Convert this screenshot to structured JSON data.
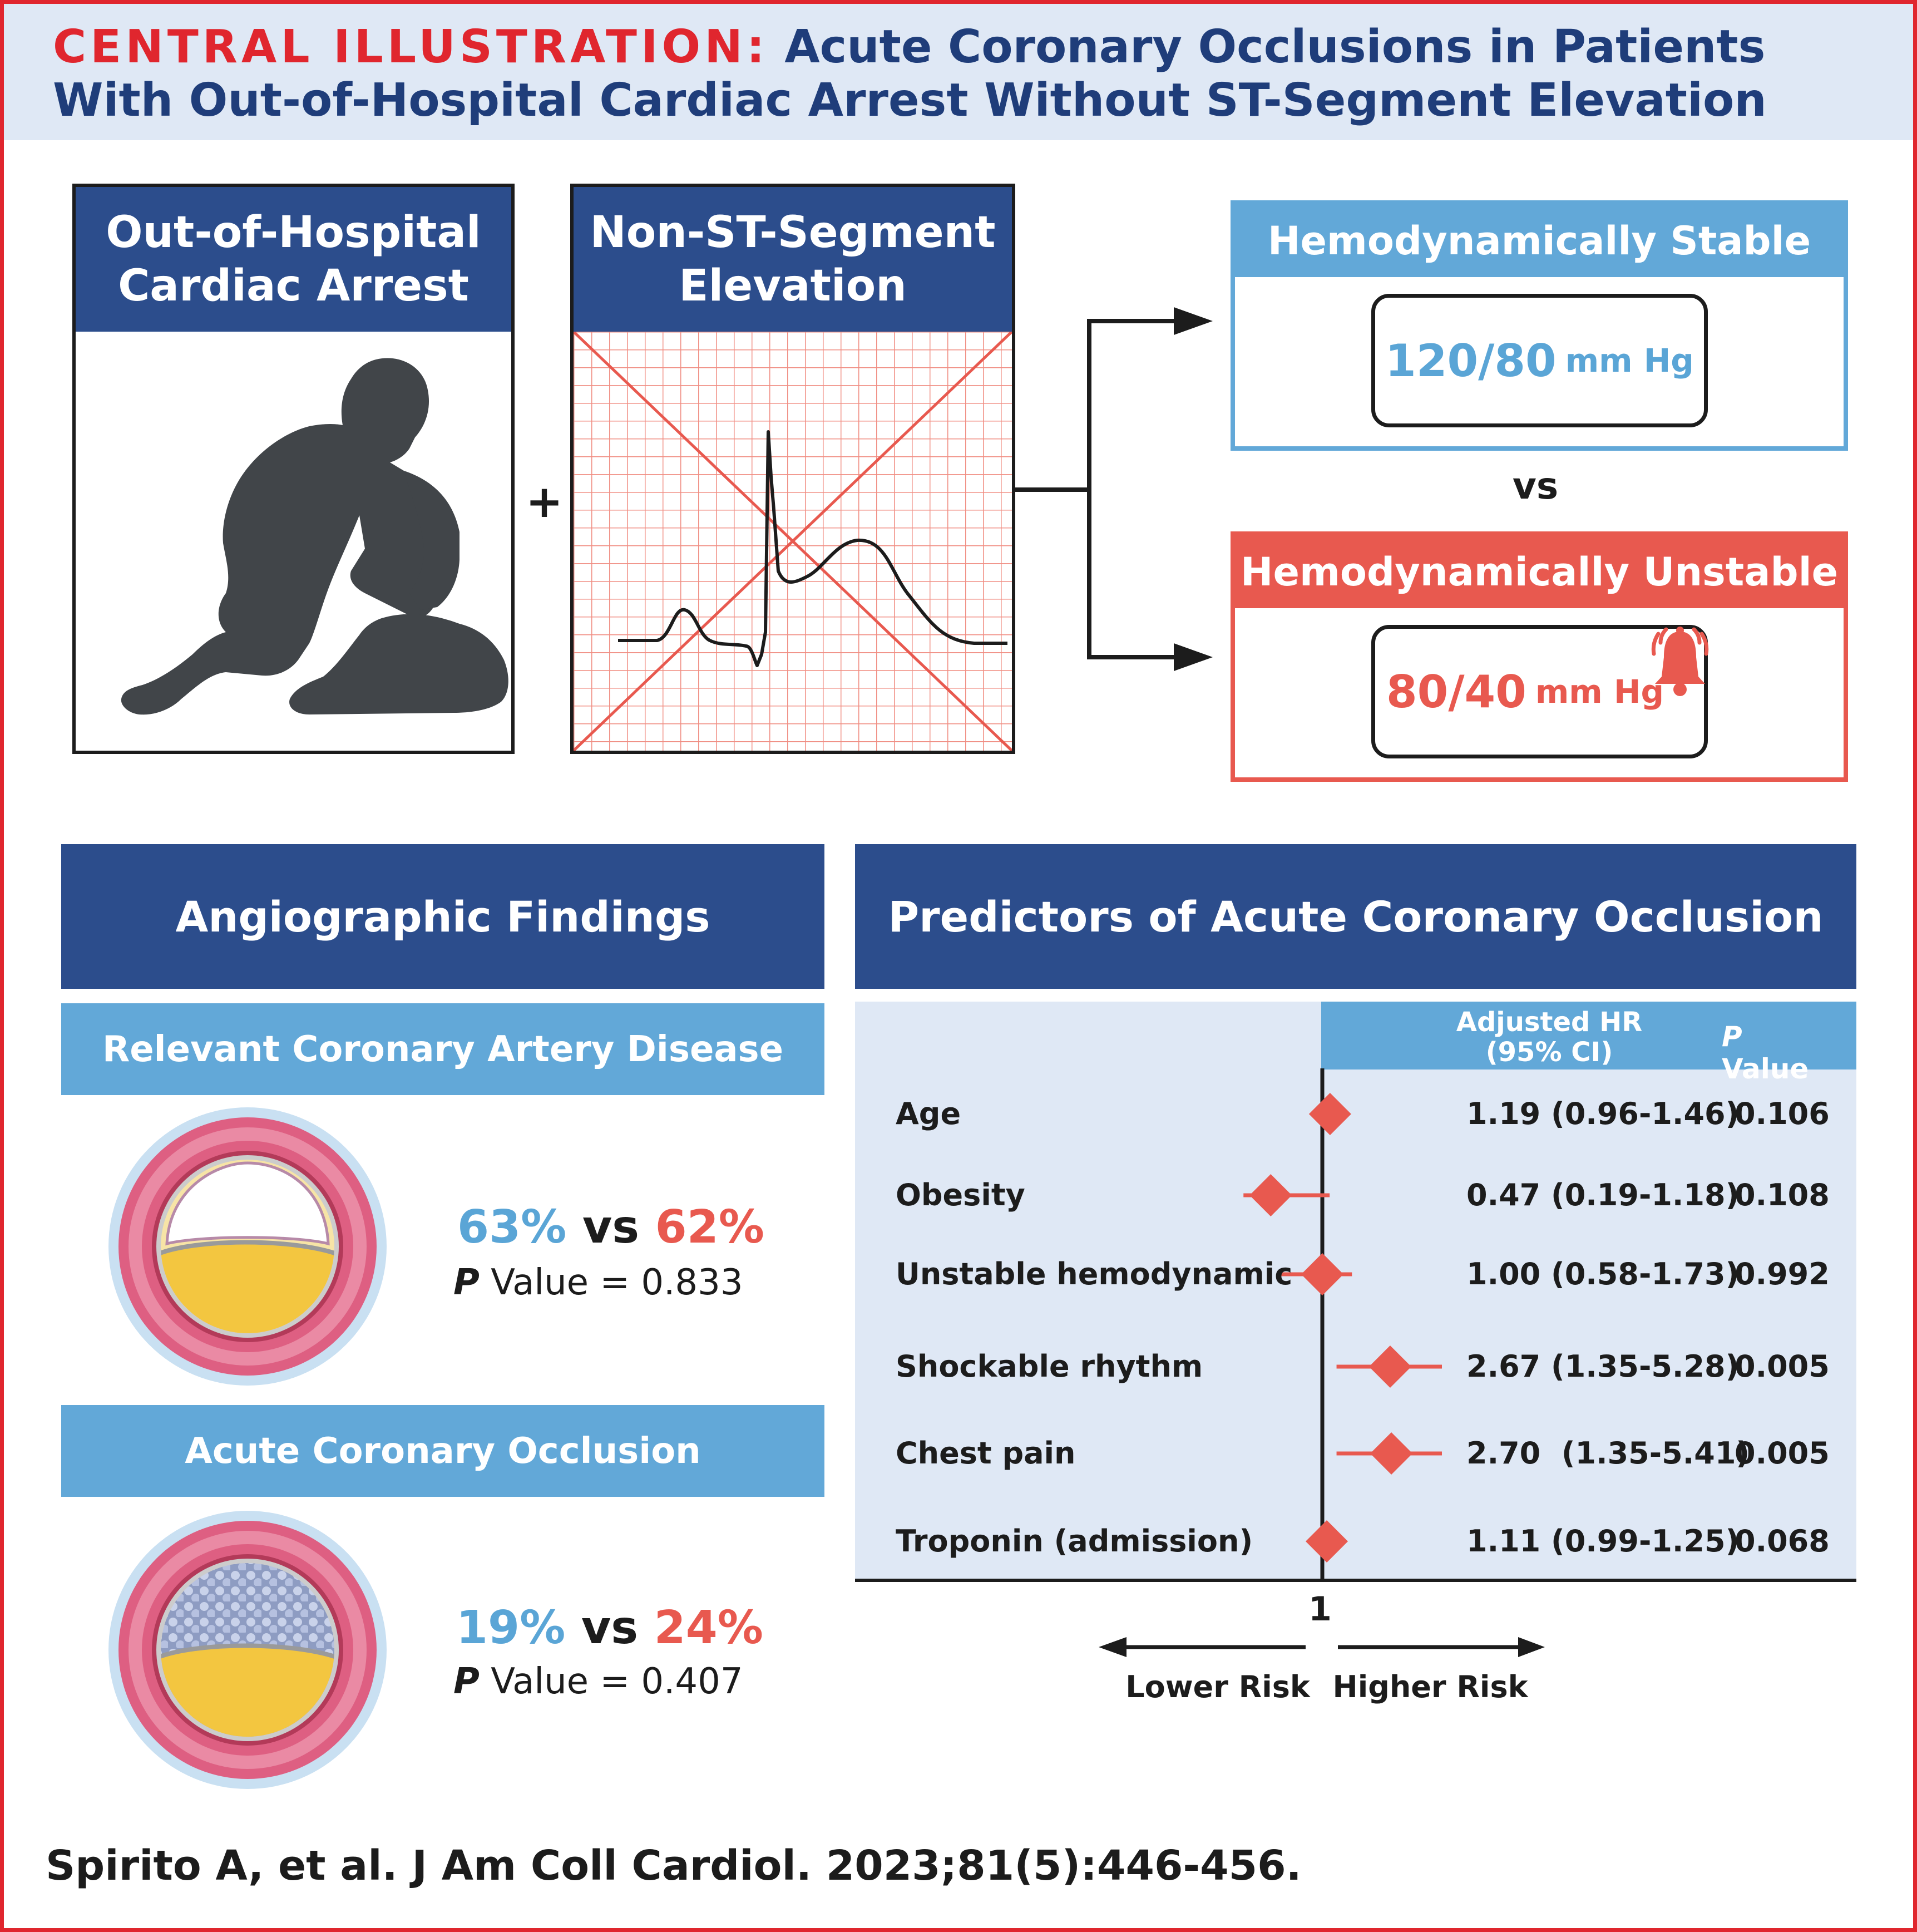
{
  "title": {
    "lead": "CENTRAL ILLUSTRATION:",
    "rest": "Acute Coronary Occlusions in Patients With Out-of-Hospital Cardiac Arrest Without ST-Segment Elevation"
  },
  "panels": {
    "ohca": {
      "line1": "Out-of-Hospital",
      "line2": "Cardiac Arrest"
    },
    "plus": "+",
    "nonst": {
      "line1": "Non-ST-Segment",
      "line2": "Elevation"
    }
  },
  "hemodynamics": {
    "stable": {
      "title": "Hemodynamically Stable",
      "value": "120/80",
      "unit": "mm Hg"
    },
    "vs": "vs",
    "unstable": {
      "title": "Hemodynamically Unstable",
      "value": "80/40",
      "unit": "mm Hg"
    }
  },
  "angiographic": {
    "title": "Angiographic Findings",
    "cad": {
      "title": "Relevant Coronary Artery Disease",
      "stable_pct": "63%",
      "vs": "vs",
      "unstable_pct": "62%",
      "p_label": "P",
      "p_text": "Value = 0.833"
    },
    "aco": {
      "title": "Acute Coronary Occlusion",
      "stable_pct": "19%",
      "vs": "vs",
      "unstable_pct": "24%",
      "p_label": "P",
      "p_text": "Value = 0.407"
    }
  },
  "predictors": {
    "title": "Predictors of Acute Coronary Occlusion",
    "hr_header_line1": "Adjusted HR",
    "hr_header_line2": "(95% CI)",
    "p_header_italic": "P",
    "p_header_rest": "Value",
    "ref_label": "1",
    "lower_risk": "Lower Risk",
    "higher_risk": "Higher Risk"
  },
  "chart_data": {
    "type": "forest",
    "reference": 1,
    "rows": [
      {
        "label": "Age",
        "hr": 1.19,
        "ci": [
          0.96,
          1.46
        ],
        "hr_text": "1.19 (0.96-1.46)",
        "p": "0.106"
      },
      {
        "label": "Obesity",
        "hr": 0.47,
        "ci": [
          0.19,
          1.18
        ],
        "hr_text": "0.47 (0.19-1.18)",
        "p": "0.108"
      },
      {
        "label": "Unstable hemodynamic",
        "hr": 1.0,
        "ci": [
          0.58,
          1.73
        ],
        "hr_text": "1.00 (0.58-1.73)",
        "p": "0.992"
      },
      {
        "label": "Shockable rhythm",
        "hr": 2.67,
        "ci": [
          1.35,
          5.28
        ],
        "hr_text": "2.67 (1.35-5.28)",
        "p": "0.005"
      },
      {
        "label": "Chest pain",
        "hr": 2.7,
        "ci": [
          1.35,
          5.41
        ],
        "hr_text": "2.70  (1.35-5.41)",
        "p": "0.005"
      },
      {
        "label": "Troponin (admission)",
        "hr": 1.11,
        "ci": [
          0.99,
          1.25
        ],
        "hr_text": "1.11 (0.99-1.25)",
        "p": "0.068"
      }
    ]
  },
  "citation": "Spirito A, et al. J Am Coll Cardiol. 2023;81(5):446-456.",
  "colors": {
    "navy": "#2c4d8c",
    "light_blue": "#62a8d8",
    "coral": "#e8594f",
    "accent_red": "#e0262e"
  }
}
